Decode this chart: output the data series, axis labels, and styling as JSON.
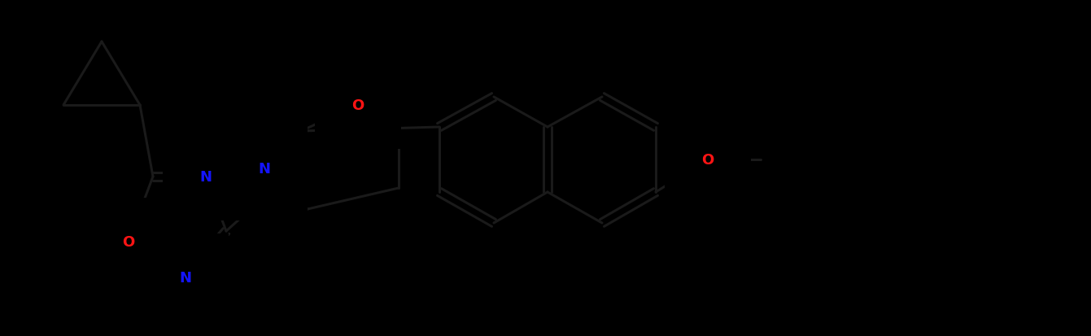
{
  "bg": "#000000",
  "bond_color": "#1a1a1a",
  "N_color": "#1414ff",
  "O_color": "#ff1414",
  "lw": 2.2,
  "fs": 13,
  "figsize": [
    13.41,
    4.14
  ],
  "dpi": 100,
  "xlim": [
    0,
    1341
  ],
  "ylim": [
    0,
    414
  ]
}
